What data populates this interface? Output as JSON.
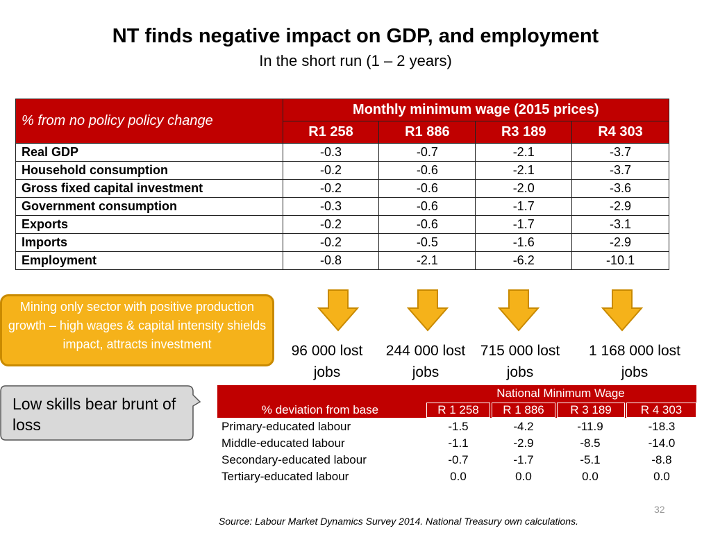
{
  "title": "NT finds negative impact on GDP, and employment",
  "subtitle": "In the short run (1 – 2 years)",
  "table1": {
    "corner_label": "% from no policy policy change",
    "group_header": "Monthly minimum wage (2015 prices)",
    "columns": [
      "R1 258",
      "R1 886",
      "R3 189",
      "R4 303"
    ],
    "rows": [
      {
        "label": "Real GDP",
        "values": [
          "-0.3",
          "-0.7",
          "-2.1",
          "-3.7"
        ]
      },
      {
        "label": "Household consumption",
        "values": [
          "-0.2",
          "-0.6",
          "-2.1",
          "-3.7"
        ]
      },
      {
        "label": "Gross fixed capital investment",
        "values": [
          "-0.2",
          "-0.6",
          "-2.0",
          "-3.6"
        ]
      },
      {
        "label": "Government consumption",
        "values": [
          "-0.3",
          "-0.6",
          "-1.7",
          "-2.9"
        ]
      },
      {
        "label": "Exports",
        "values": [
          "-0.2",
          "-0.6",
          "-1.7",
          "-3.1"
        ]
      },
      {
        "label": "Imports",
        "values": [
          "-0.2",
          "-0.5",
          "-1.6",
          "-2.9"
        ]
      },
      {
        "label": "Employment",
        "values": [
          "-0.8",
          "-2.1",
          "-6.2",
          "-10.1"
        ]
      }
    ]
  },
  "mining_note": "Mining only sector with positive production growth – high wages & capital intensity shields impact, attracts investment",
  "jobs": [
    {
      "line1": "96 000 lost",
      "line2": "jobs"
    },
    {
      "line1": "244 000 lost",
      "line2": "jobs"
    },
    {
      "line1": "715 000  lost",
      "line2": "jobs"
    },
    {
      "line1": "1 168 000  lost",
      "line2": "jobs"
    }
  ],
  "callout": "Low skills bear brunt of loss",
  "table2": {
    "group_header": "National Minimum Wage",
    "row_header": "% deviation from base",
    "columns": [
      "R 1 258",
      "R 1 886",
      "R 3 189",
      "R 4 303"
    ],
    "rows": [
      {
        "label": "Primary-educated labour",
        "values": [
          "-1.5",
          "-4.2",
          "-11.9",
          "-18.3"
        ]
      },
      {
        "label": "Middle-educated labour",
        "values": [
          "-1.1",
          "-2.9",
          "-8.5",
          "-14.0"
        ]
      },
      {
        "label": "Secondary-educated labour",
        "values": [
          "-0.7",
          "-1.7",
          "-5.1",
          "-8.8"
        ]
      },
      {
        "label": "Tertiary-educated labour",
        "values": [
          "0.0",
          "0.0",
          "0.0",
          "0.0"
        ]
      }
    ]
  },
  "page_number": "32",
  "source": "Source: Labour Market Dynamics Survey 2014. National Treasury own calculations.",
  "colors": {
    "red": "#c00000",
    "orange": "#f5b21a",
    "grey": "#d9d9d9"
  }
}
